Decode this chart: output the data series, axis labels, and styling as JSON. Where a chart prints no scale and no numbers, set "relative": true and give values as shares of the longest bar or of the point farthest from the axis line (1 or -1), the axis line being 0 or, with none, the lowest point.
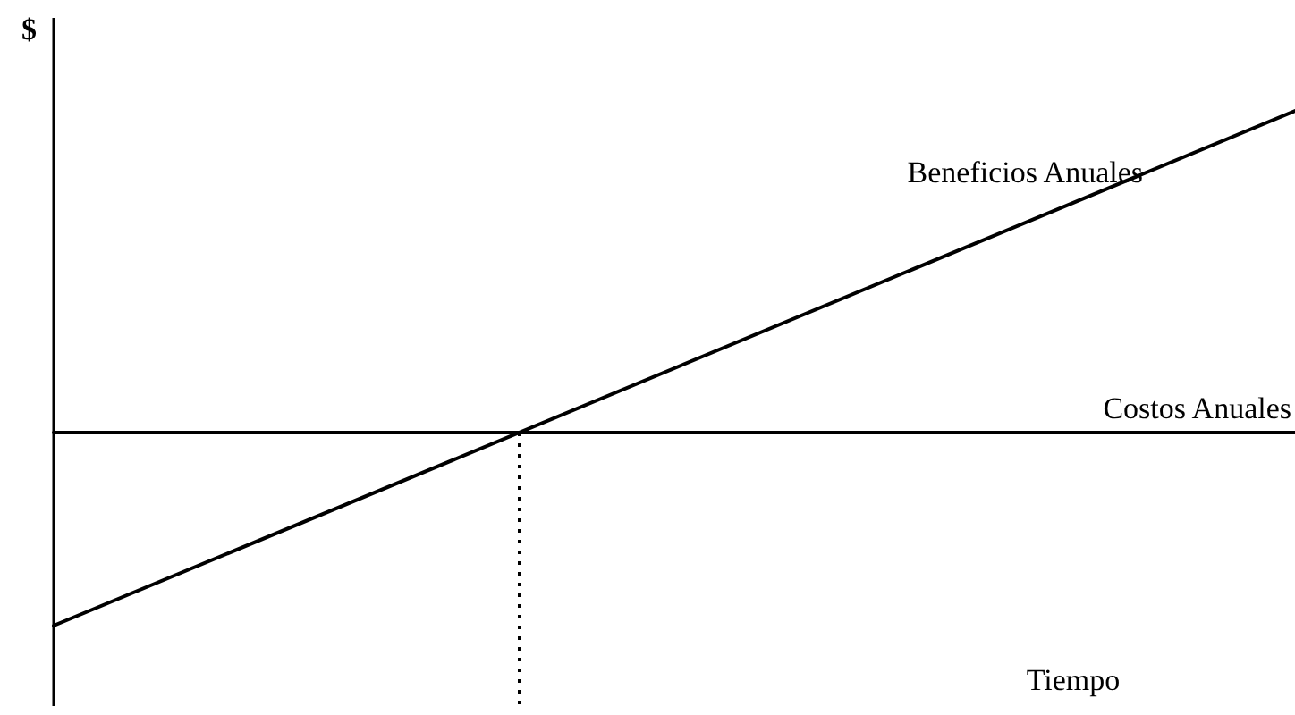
{
  "chart_data": {
    "type": "line",
    "relative": true,
    "xlabel": "Tiempo",
    "ylabel": "$",
    "categories": [
      null,
      null
    ],
    "series": [
      {
        "name": "Beneficios Anuales",
        "color": "#000000",
        "values": [
          0,
          1
        ]
      },
      {
        "name": "Costos Anuales",
        "color": "#000000",
        "values": [
          0.375,
          0.375
        ]
      }
    ]
  }
}
